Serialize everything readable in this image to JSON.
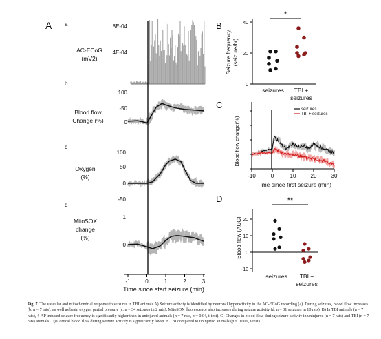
{
  "figure": {
    "panel_A": {
      "letter": "A",
      "sub_letters": [
        "a",
        "b",
        "c",
        "d"
      ],
      "row_labels": {
        "ecog": [
          "AC-ECoG",
          "(mV2)"
        ],
        "blood": [
          "Blood flow",
          "Change (%)"
        ],
        "oxygen": [
          "Oxygen",
          "(%)"
        ],
        "mitosox": [
          "MitoSOX",
          "change",
          "(%)"
        ]
      },
      "ticks": {
        "ecog": [
          "8E-04",
          "4E-04"
        ],
        "blood": [
          "100",
          "-50",
          "0"
        ],
        "oxygen": [
          "100",
          "50",
          "0",
          "-50"
        ],
        "mitosox": [
          "1",
          "0"
        ]
      },
      "x_ticks": [
        "-1",
        "0",
        "1",
        "2",
        "3"
      ],
      "xlabel": "Time since start seizure (min)"
    },
    "panel_B": {
      "letter": "B",
      "ylabel": [
        "Seizure frequency",
        "(seizure/hr)"
      ],
      "yticks": [
        "40",
        "20",
        "0"
      ],
      "groups": [
        "seizures",
        "TBI +",
        "seizures"
      ],
      "sig": "*"
    },
    "panel_C": {
      "letter": "C",
      "ylabel": "Blood flow change(%)",
      "yticks": [
        "200",
        "150",
        "100",
        "50",
        "0"
      ],
      "xticks": [
        "-10",
        "0",
        "10",
        "20",
        "30"
      ],
      "xlabel": "Time since first seizure (min)",
      "legend": [
        "seizures",
        "TBI + seizures"
      ]
    },
    "panel_D": {
      "letter": "D",
      "ylabel": "Blood flow (AUC)",
      "yticks": [
        "20",
        "10",
        "0",
        "-10"
      ],
      "groups": [
        "seizures",
        "TBI +",
        "seizures"
      ],
      "sig": "**"
    }
  },
  "chart_data": [
    {
      "type": "scatter",
      "panel": "B",
      "ylabel": "Seizure frequency (seizure/hr)",
      "categories": [
        "seizures",
        "TBI + seizures"
      ],
      "ylim": [
        0,
        40
      ],
      "series": [
        {
          "values": [
            21,
            21,
            17,
            15,
            13,
            10,
            9
          ],
          "color": "#111111"
        },
        {
          "values": [
            36,
            30,
            24,
            20,
            20,
            19,
            18
          ],
          "color": "#8b1c1c"
        }
      ]
    },
    {
      "type": "scatter",
      "panel": "D",
      "ylabel": "Blood flow (AUC)",
      "categories": [
        "seizures",
        "TBI + seizures"
      ],
      "ylim": [
        -10,
        20
      ],
      "series": [
        {
          "values": [
            19,
            14,
            11,
            9,
            8,
            3,
            2
          ],
          "color": "#111111"
        },
        {
          "values": [
            5,
            2,
            1,
            -3,
            -4,
            -5,
            -6
          ],
          "color": "#8b1c1c"
        }
      ]
    },
    {
      "type": "line",
      "panel": "C",
      "xlabel": "Time since first seizure (min)",
      "ylabel": "Blood flow change(%)",
      "xlim": [
        -10,
        30
      ],
      "ylim": [
        0,
        200
      ],
      "series": [
        {
          "name": "seizures",
          "color": "#111111",
          "x": [
            -10,
            -5,
            0,
            1,
            3,
            5,
            7,
            10,
            13,
            15,
            18,
            20,
            23,
            25,
            28,
            30
          ],
          "y": [
            50,
            60,
            70,
            110,
            95,
            80,
            70,
            85,
            75,
            80,
            70,
            85,
            75,
            70,
            60,
            55
          ]
        },
        {
          "name": "TBI + seizures",
          "color": "#d21f1f",
          "x": [
            -10,
            -5,
            0,
            1,
            3,
            5,
            7,
            10,
            13,
            15,
            18,
            20,
            23,
            25,
            28,
            30
          ],
          "y": [
            50,
            55,
            55,
            70,
            60,
            55,
            50,
            50,
            45,
            40,
            38,
            35,
            30,
            28,
            20,
            15
          ]
        }
      ]
    },
    {
      "type": "line",
      "panel": "A-b",
      "xlabel": "Time since start seizure (min)",
      "ylabel": "Blood flow Change (%)",
      "xlim": [
        -1,
        3
      ],
      "series": [
        {
          "x": [
            -1,
            -0.5,
            -0.2,
            0,
            0.2,
            0.5,
            0.8,
            1,
            1.5,
            2,
            2.5,
            3
          ],
          "y": [
            0,
            2,
            -2,
            -6,
            15,
            48,
            60,
            55,
            45,
            40,
            38,
            35
          ]
        }
      ]
    },
    {
      "type": "line",
      "panel": "A-c",
      "xlabel": "Time since start seizure (min)",
      "ylabel": "Oxygen (%)",
      "xlim": [
        -1,
        3
      ],
      "series": [
        {
          "x": [
            -1,
            -0.5,
            0,
            0.3,
            0.7,
            1,
            1.2,
            1.5,
            1.8,
            2,
            2.3,
            2.6,
            3
          ],
          "y": [
            0,
            0,
            0,
            5,
            30,
            60,
            72,
            78,
            70,
            45,
            10,
            0,
            0
          ]
        }
      ]
    },
    {
      "type": "line",
      "panel": "A-d",
      "xlabel": "Time since start seizure (min)",
      "ylabel": "MitoSOX change (%)",
      "xlim": [
        -1,
        3
      ],
      "series": [
        {
          "x": [
            -1,
            -0.5,
            0,
            0.3,
            0.7,
            1,
            1.3,
            1.6,
            2,
            2.5,
            3
          ],
          "y": [
            0,
            0.02,
            -0.08,
            -0.15,
            -0.05,
            0.15,
            0.3,
            0.33,
            0.3,
            0.25,
            0.12
          ]
        }
      ]
    }
  ],
  "caption": {
    "fig_label": "Fig. 7.",
    "text": "The vascular and mitochondrial response to seizures in TBI animals A) Seizure activity is identified by neuronal hyperactivity in the AC-ECoG recording (a). During seizures, blood flow increases (b, n = 7 rats), as well as brain oxygen partial pressure (c, n = 34 seizures in 2 rats). MitoSOX fluorescence also increases during seizure activity (d, n = 31 seizures in 10 rats). B) In TBI animals (n = 7 rats), 4-AP induced seizure frequency is significantly higher than in uninjured animals (n = 7 rats, p = 0.04, t-test). C) Changes in blood flow during seizure activity in uninjured (n = 7 rats) and TBI (n = 7 rats) animals. D) Cortical blood flow during seizure activity is significantly lower in TBI compared to uninjured animals (p = 0.006, t-test)."
  }
}
